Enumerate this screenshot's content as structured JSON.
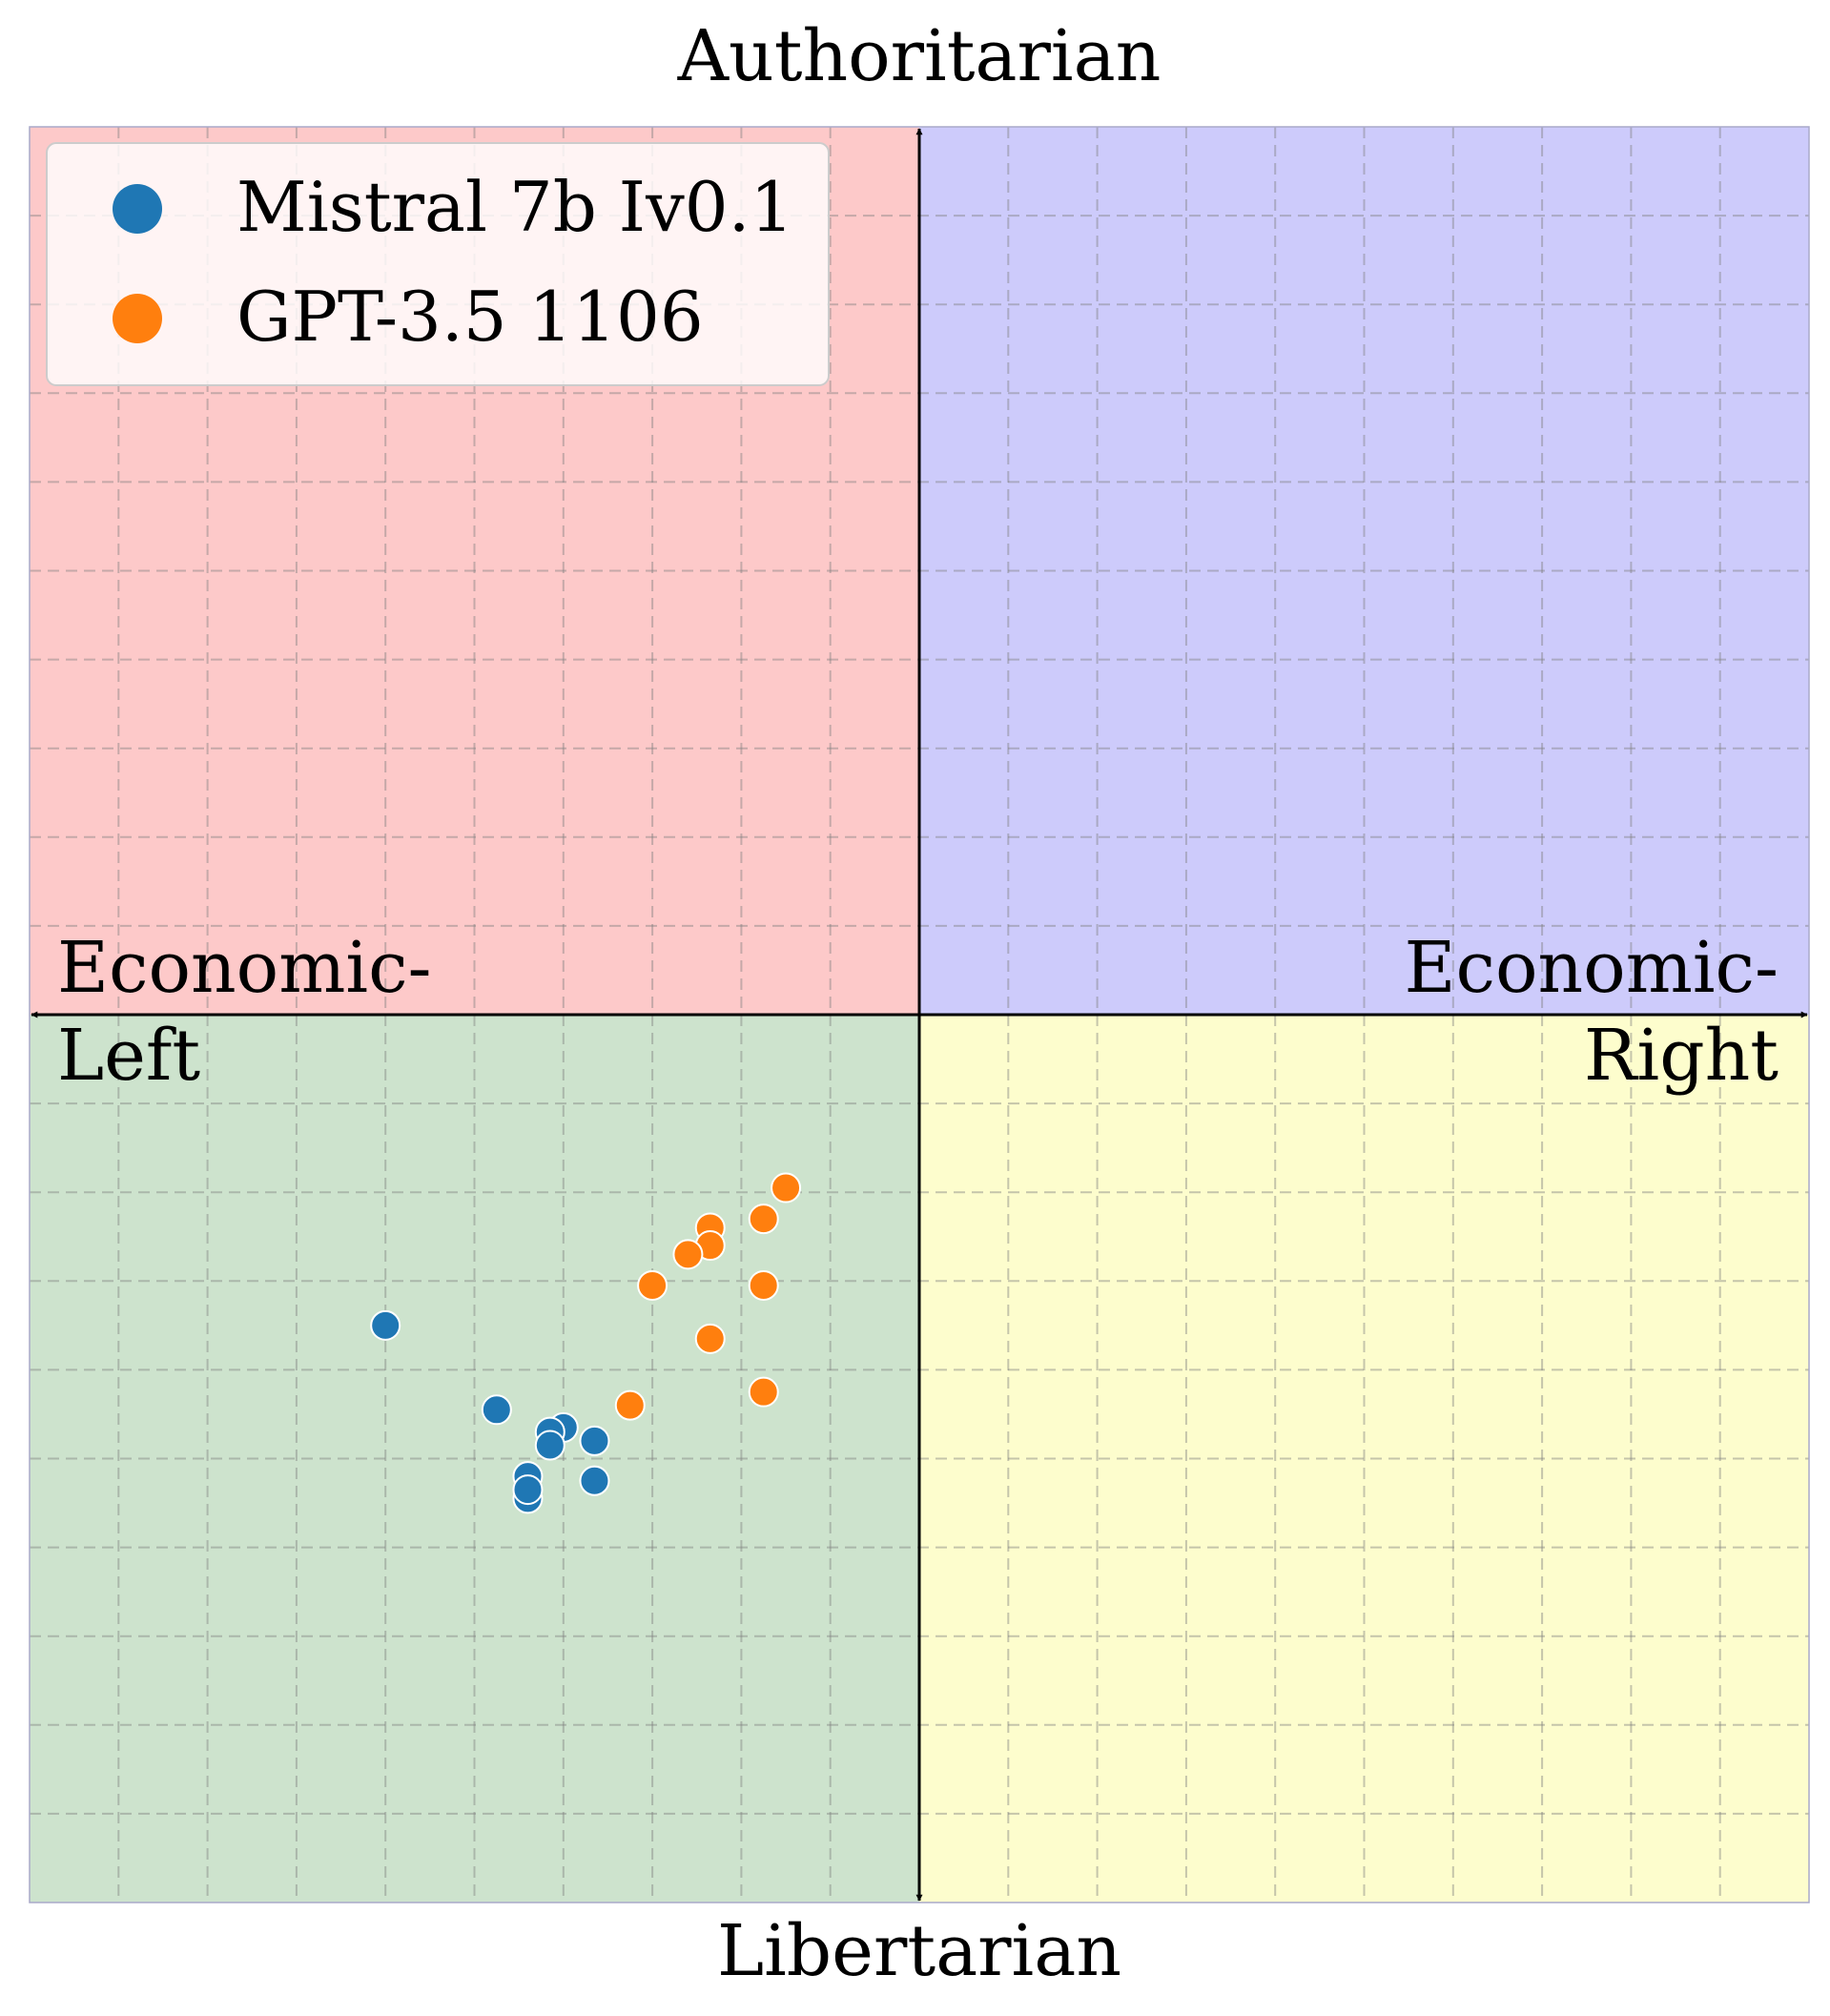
{
  "chart_data": {
    "type": "scatter",
    "title": "",
    "xlim": [
      -10,
      10
    ],
    "ylim": [
      -10,
      10
    ],
    "grid": true,
    "legend_position": "top-left",
    "labels": {
      "top": "Authoritarian",
      "bottom": "Libertarian",
      "left_line1": "Economic-",
      "left_line2": "Left",
      "right_line1": "Economic-",
      "right_line2": "Right"
    },
    "quadrant_colors": {
      "authoritarian_left": "#fdc9c9",
      "authoritarian_right": "#cdcbfb",
      "libertarian_left": "#cde3cd",
      "libertarian_right": "#fdfdcd"
    },
    "series": [
      {
        "name": "Mistral 7b Iv0.1",
        "color": "#1f77b4",
        "points": [
          [
            -6.0,
            -3.5
          ],
          [
            -4.75,
            -4.45
          ],
          [
            -4.0,
            -4.65
          ],
          [
            -4.15,
            -4.7
          ],
          [
            -4.15,
            -4.85
          ],
          [
            -3.65,
            -4.8
          ],
          [
            -4.4,
            -5.2
          ],
          [
            -4.4,
            -5.45
          ],
          [
            -4.4,
            -5.35
          ],
          [
            -3.65,
            -5.25
          ]
        ]
      },
      {
        "name": "GPT-3.5 1106",
        "color": "#ff7f0e",
        "points": [
          [
            -1.5,
            -1.95
          ],
          [
            -1.75,
            -2.3
          ],
          [
            -2.35,
            -2.4
          ],
          [
            -2.35,
            -2.6
          ],
          [
            -2.6,
            -2.7
          ],
          [
            -3.0,
            -3.05
          ],
          [
            -1.75,
            -3.05
          ],
          [
            -2.35,
            -3.65
          ],
          [
            -3.25,
            -4.4
          ],
          [
            -1.75,
            -4.25
          ]
        ]
      }
    ]
  }
}
